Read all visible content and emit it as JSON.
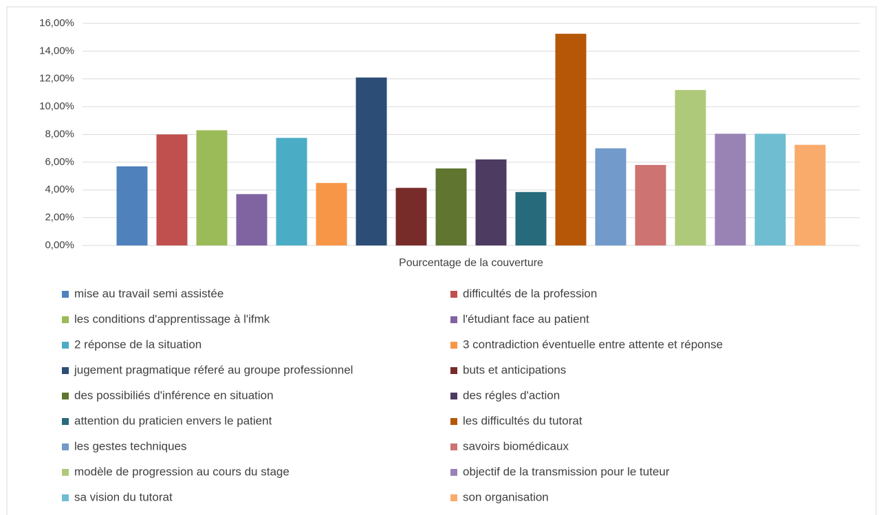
{
  "chart_data": {
    "type": "bar",
    "categories": [
      "Pourcentage de la couverture"
    ],
    "ylim": [
      0,
      16
    ],
    "yticks": [
      {
        "value": 0,
        "label": "0,00%"
      },
      {
        "value": 2,
        "label": "2,00%"
      },
      {
        "value": 4,
        "label": "4,00%"
      },
      {
        "value": 6,
        "label": "6,00%"
      },
      {
        "value": 8,
        "label": "8,00%"
      },
      {
        "value": 10,
        "label": "10,00%"
      },
      {
        "value": 12,
        "label": "12,00%"
      },
      {
        "value": 14,
        "label": "14,00%"
      },
      {
        "value": 16,
        "label": "16,00%"
      }
    ],
    "grid": true,
    "legend": "bottom",
    "series": [
      {
        "name": "mise au travail semi assistée",
        "color": "#4f81bd",
        "values": [
          5.7
        ]
      },
      {
        "name": "difficultés de la profession",
        "color": "#c0504d",
        "values": [
          8.0
        ]
      },
      {
        "name": "les conditions d'apprentissage à l'ifmk",
        "color": "#9bbb59",
        "values": [
          8.3
        ]
      },
      {
        "name": "l'étudiant face au patient",
        "color": "#8064a2",
        "values": [
          3.7
        ]
      },
      {
        "name": "2 réponse de la situation",
        "color": "#4bacc6",
        "values": [
          7.75
        ]
      },
      {
        "name": "3 contradiction éventuelle entre attente et réponse",
        "color": "#f79646",
        "values": [
          4.5
        ]
      },
      {
        "name": "jugement pragmatique réferé au groupe professionnel",
        "color": "#2c4d75",
        "values": [
          12.1
        ]
      },
      {
        "name": "buts et anticipations",
        "color": "#772c2a",
        "values": [
          4.15
        ]
      },
      {
        "name": "des possibiliés d'inférence en situation",
        "color": "#5f7530",
        "values": [
          5.55
        ]
      },
      {
        "name": "des régles d'action",
        "color": "#4d3b62",
        "values": [
          6.2
        ]
      },
      {
        "name": "attention du praticien envers le patient",
        "color": "#276a7c",
        "values": [
          3.85
        ]
      },
      {
        "name": "les difficultés du tutorat",
        "color": "#b65708",
        "values": [
          15.25
        ]
      },
      {
        "name": "les gestes techniques",
        "color": "#729aca",
        "values": [
          7.0
        ]
      },
      {
        "name": "savoirs biomédicaux",
        "color": "#cd7371",
        "values": [
          5.8
        ]
      },
      {
        "name": "modèle de progression au cours du stage",
        "color": "#afc97a",
        "values": [
          11.2
        ]
      },
      {
        "name": "objectif de la transmission pour le tuteur",
        "color": "#9983b5",
        "values": [
          8.05
        ]
      },
      {
        "name": "sa vision du tutorat",
        "color": "#6fbdd1",
        "values": [
          8.05
        ]
      },
      {
        "name": "son organisation",
        "color": "#f9ab6b",
        "values": [
          7.25
        ]
      }
    ]
  }
}
